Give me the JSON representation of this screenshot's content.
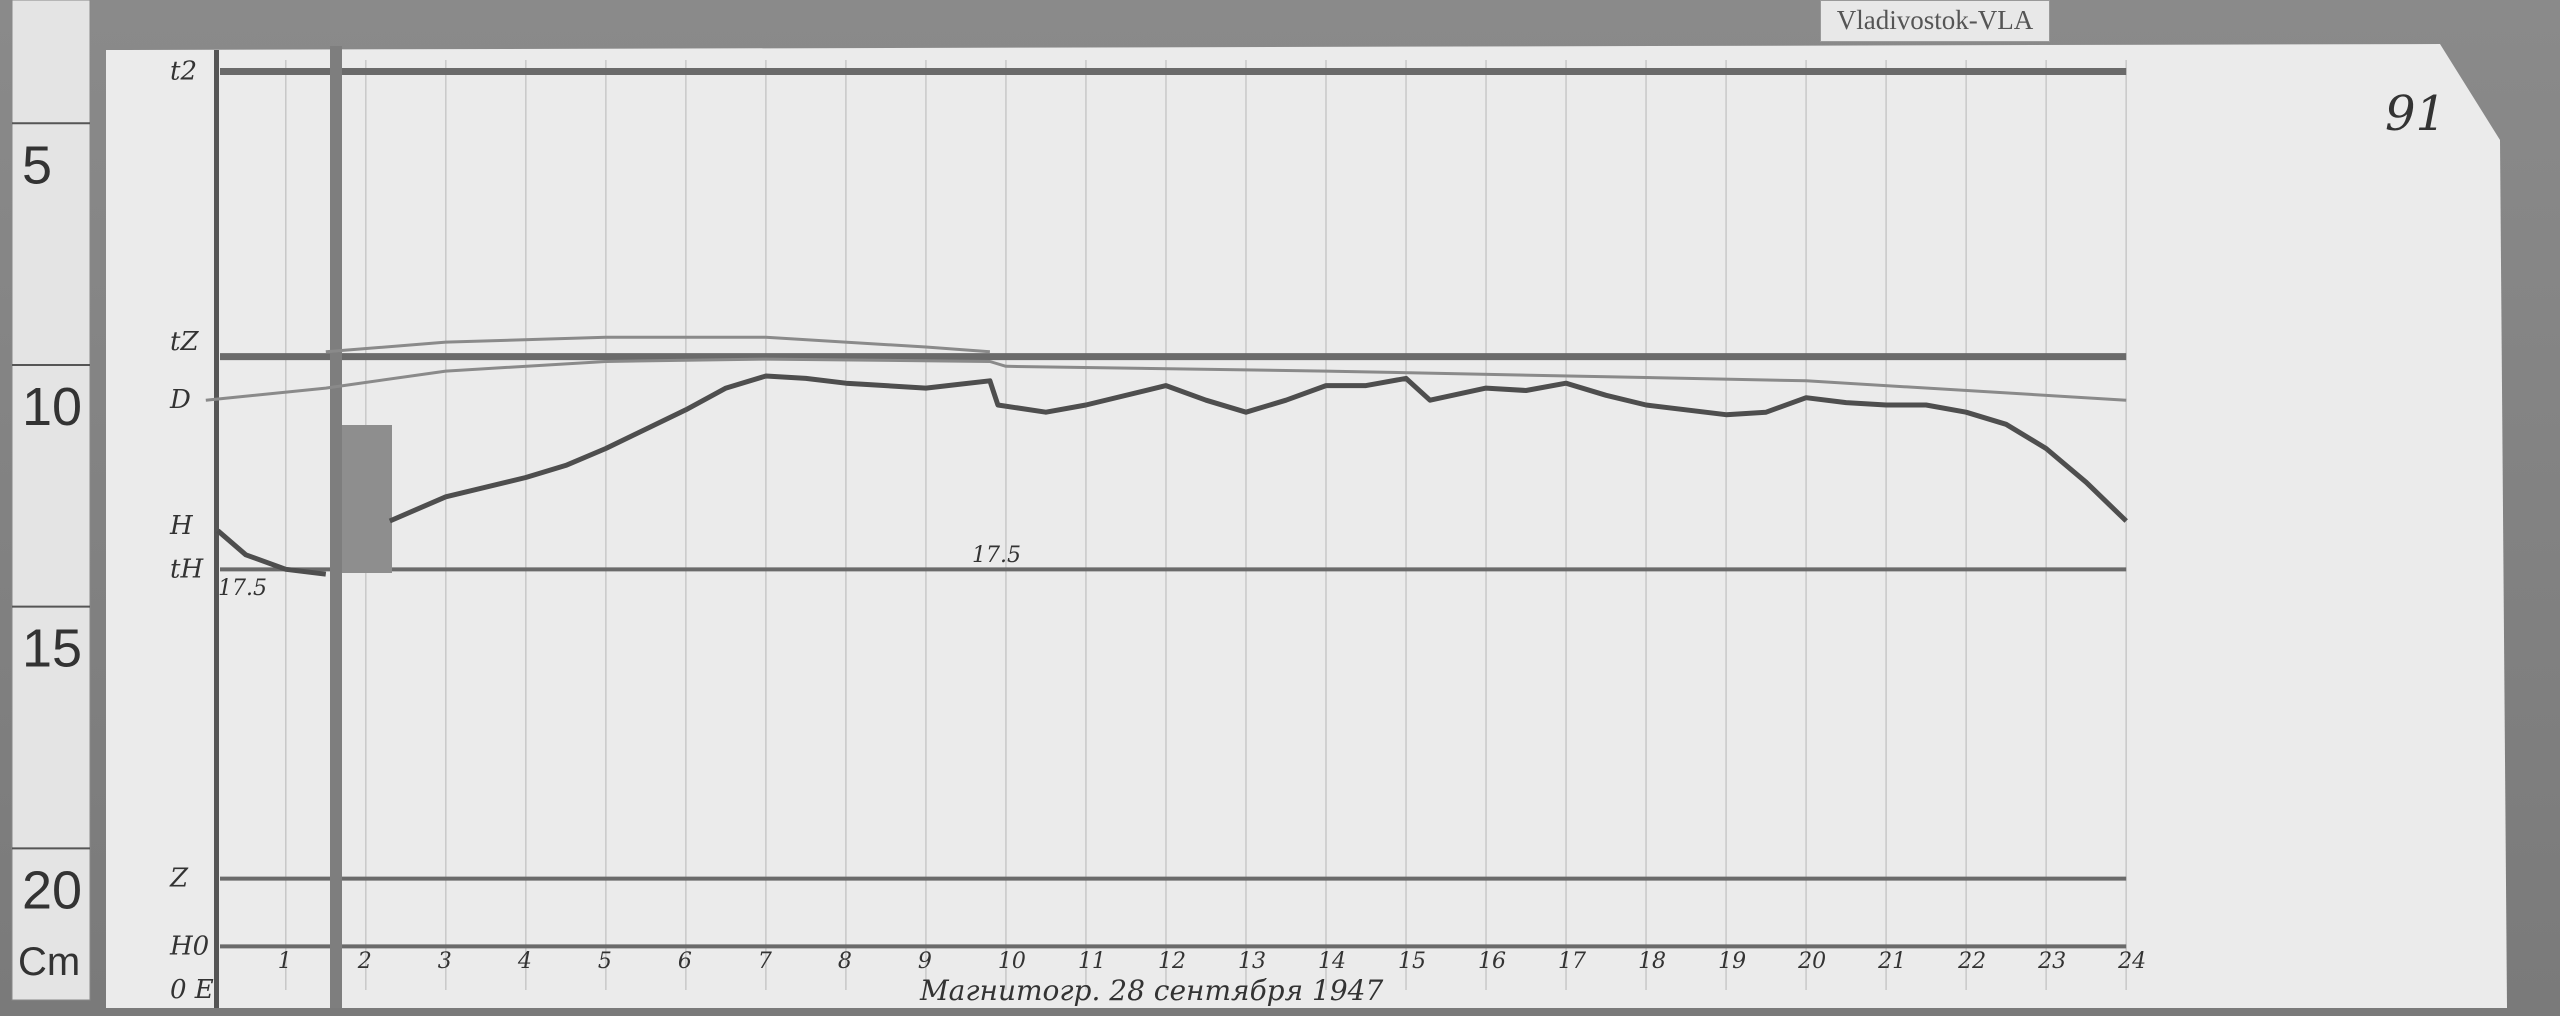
{
  "station_tag": "Vladivostok-VLA",
  "sheet_number": "91",
  "caption": "Магнитогр. 28 сентября 1947",
  "ruler": {
    "ticks": [
      "5",
      "10",
      "15",
      "20"
    ],
    "unit": "Cm"
  },
  "channel_labels": [
    "t2",
    "tZ",
    "D",
    "H",
    "tH",
    "Z",
    "H0",
    "0 E"
  ],
  "annotations": [
    "17.5",
    "17.5"
  ],
  "colors": {
    "paper": "#ebebeb",
    "trace": "#5a5a5a",
    "baseline": "#6a6a6a",
    "background": "#7a7a7a"
  },
  "chart_data": {
    "type": "line",
    "title": "",
    "xlabel": "",
    "ylabel": "",
    "x_ticks": [
      "1",
      "2",
      "3",
      "4",
      "5",
      "6",
      "7",
      "8",
      "9",
      "10",
      "11",
      "12",
      "13",
      "14",
      "15",
      "16",
      "17",
      "18",
      "19",
      "20",
      "21",
      "22",
      "23",
      "24"
    ],
    "xlim": [
      0,
      24
    ],
    "y_unit_note": "ruler cm",
    "ylim_cm": [
      3,
      22
    ],
    "grid": true,
    "baselines_cm": {
      "t2": 3.1,
      "tZ": 9.0,
      "tH": 13.4,
      "Z": 19.8,
      "H0": 21.2
    },
    "series": [
      {
        "key": "H",
        "hours": [
          0.15,
          0.5,
          1,
          1.5,
          null,
          2.3,
          3,
          4,
          4.5,
          5,
          6,
          6.5,
          7,
          7.5,
          8,
          9,
          9.8,
          9.9,
          10.5,
          11,
          12,
          12.5,
          13,
          13.5,
          14,
          14.5,
          15,
          15.3,
          16,
          16.5,
          17,
          17.5,
          18,
          19,
          19.5,
          20,
          20.5,
          21,
          21.5,
          22,
          22.5,
          23,
          23.5,
          24
        ],
        "cm": [
          12.6,
          13.1,
          13.4,
          13.5,
          null,
          12.4,
          11.9,
          11.5,
          11.25,
          10.9,
          10.1,
          9.65,
          9.4,
          9.45,
          9.55,
          9.65,
          9.5,
          10.0,
          10.15,
          10.0,
          9.6,
          9.9,
          10.15,
          9.9,
          9.6,
          9.6,
          9.45,
          9.9,
          9.65,
          9.7,
          9.55,
          9.8,
          10.0,
          10.2,
          10.15,
          9.85,
          9.95,
          10.0,
          10.0,
          10.15,
          10.4,
          10.9,
          11.6,
          12.4
        ]
      },
      {
        "key": "D",
        "hours": [
          0,
          1.5,
          3,
          5,
          7,
          9.8,
          10,
          14,
          20,
          24
        ],
        "cm": [
          9.9,
          9.65,
          9.3,
          9.1,
          9.05,
          9.1,
          9.2,
          9.3,
          9.5,
          9.9
        ]
      },
      {
        "key": "Z",
        "hours": [
          1.5,
          3,
          5,
          7,
          9,
          9.8
        ],
        "cm": [
          8.9,
          8.7,
          8.6,
          8.6,
          8.8,
          8.9
        ]
      }
    ]
  }
}
